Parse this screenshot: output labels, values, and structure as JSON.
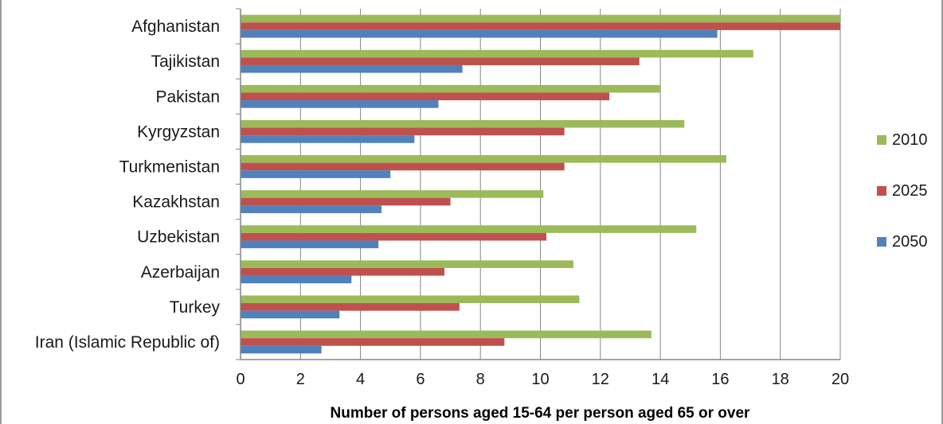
{
  "chart_data": {
    "type": "bar",
    "orientation": "horizontal",
    "categories": [
      "Afghanistan",
      "Tajikistan",
      "Pakistan",
      "Kyrgyzstan",
      "Turkmenistan",
      "Kazakhstan",
      "Uzbekistan",
      "Azerbaijan",
      "Turkey",
      "Iran (Islamic Republic of)"
    ],
    "series": [
      {
        "name": "2010",
        "color": "#9bbb59",
        "values": [
          20.0,
          17.1,
          14.0,
          14.8,
          16.2,
          10.1,
          15.2,
          11.1,
          11.3,
          13.7
        ]
      },
      {
        "name": "2025",
        "color": "#c0504d",
        "values": [
          20.0,
          13.3,
          12.3,
          10.8,
          10.8,
          7.0,
          10.2,
          6.8,
          7.3,
          8.8
        ]
      },
      {
        "name": "2050",
        "color": "#4f81bd",
        "values": [
          15.9,
          7.4,
          6.6,
          5.8,
          5.0,
          4.7,
          4.6,
          3.7,
          3.3,
          2.7
        ]
      }
    ],
    "xlabel": "Number of persons aged 15-64 per person aged 65 or over",
    "xlim": [
      0,
      20
    ],
    "xticks": [
      "0",
      "2",
      "4",
      "6",
      "8",
      "10",
      "12",
      "14",
      "16",
      "18",
      "20"
    ],
    "grid": "vertical",
    "legend": "right",
    "legend_order": [
      "2010",
      "2025",
      "2050"
    ]
  }
}
